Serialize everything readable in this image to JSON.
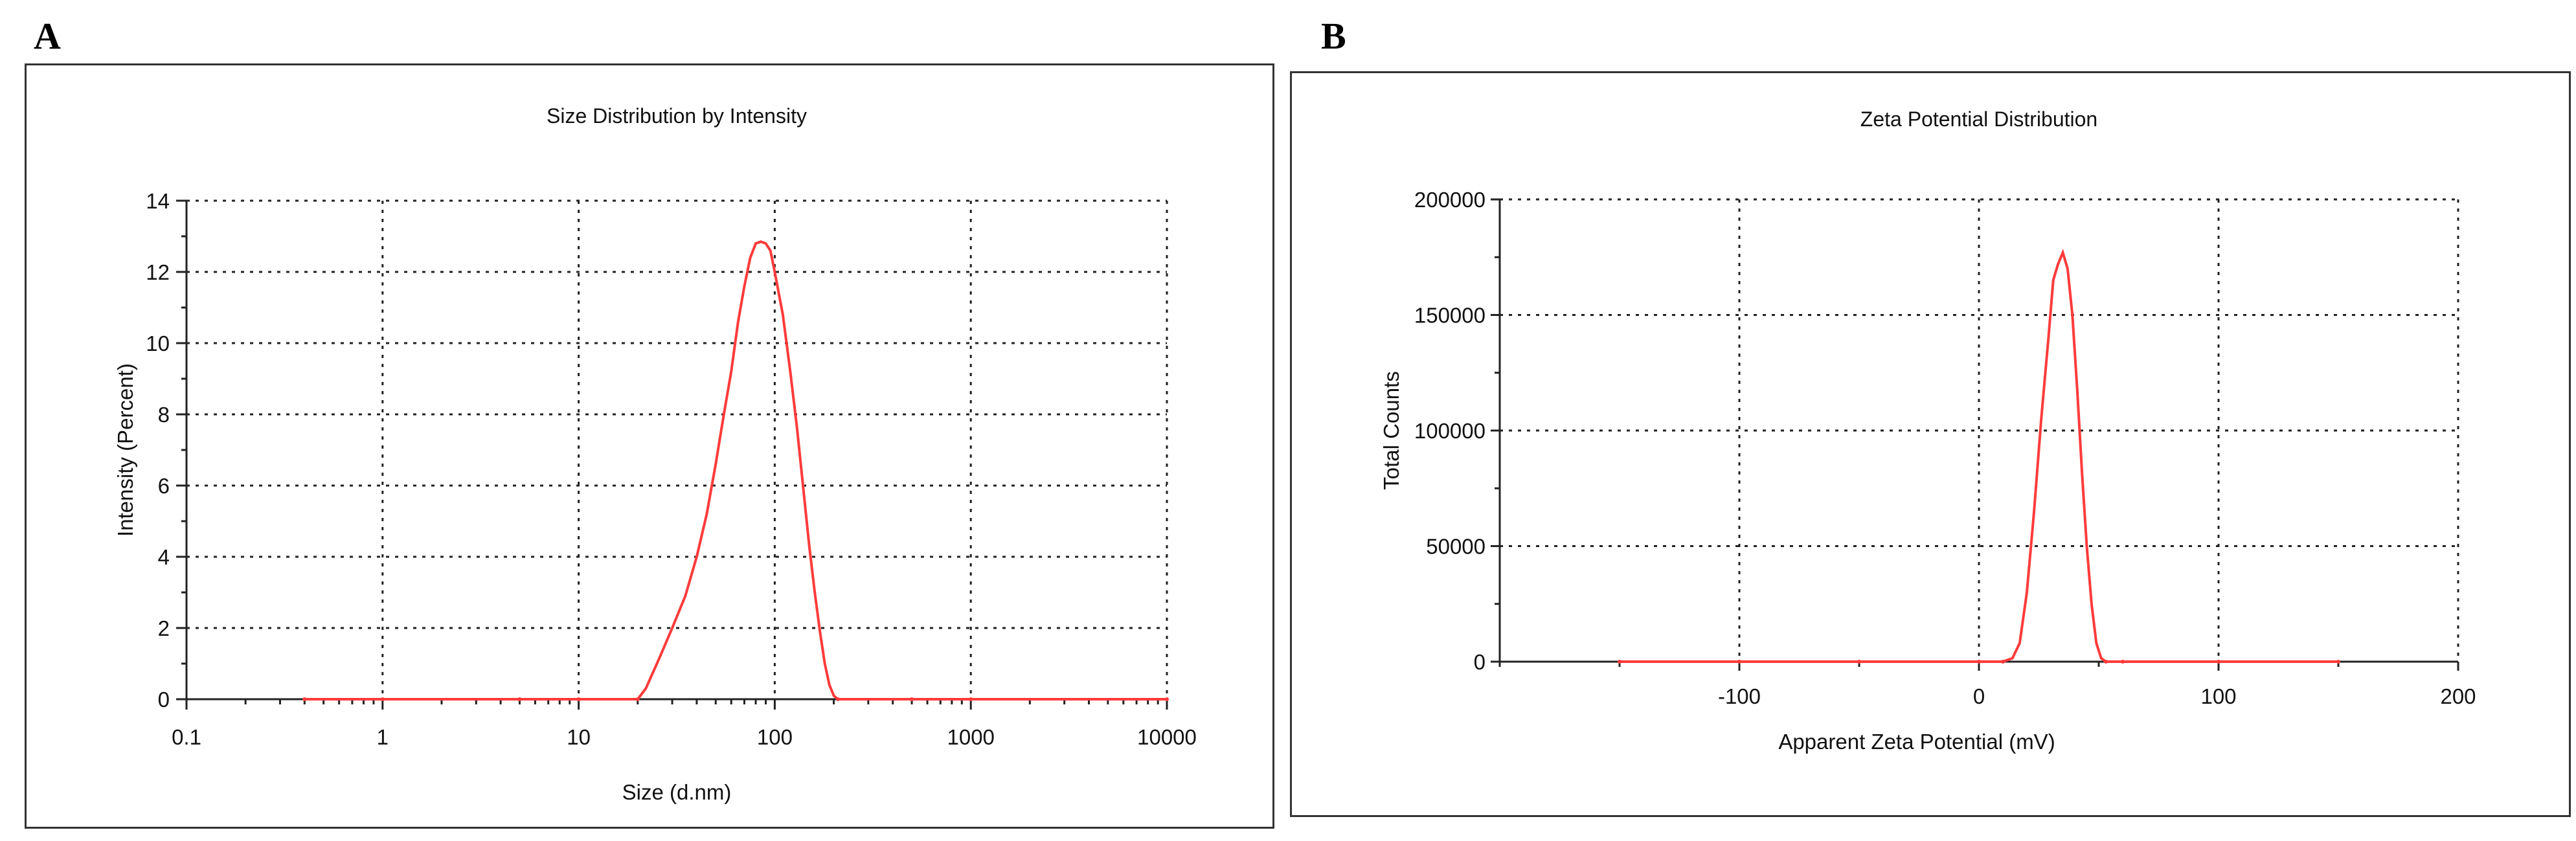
{
  "panels": {
    "a_label": "A",
    "b_label": "B"
  },
  "chart_data": [
    {
      "type": "line",
      "title": "Size Distribution by Intensity",
      "xlabel": "Size (d.nm)",
      "ylabel": "Intensity (Percent)",
      "x_scale": "log",
      "xlim": [
        0.1,
        10000
      ],
      "ylim": [
        0,
        14
      ],
      "x_ticks": [
        "0.1",
        "1",
        "10",
        "100",
        "1000",
        "10000"
      ],
      "y_ticks": [
        "0",
        "2",
        "4",
        "6",
        "8",
        "10",
        "12",
        "14"
      ],
      "grid": true,
      "color": "#ff3b3b",
      "series": [
        {
          "x": [
            0.4,
            1,
            5,
            10,
            20,
            22,
            26,
            30,
            35,
            40,
            45,
            50,
            55,
            60,
            65,
            70,
            75,
            80,
            85,
            90,
            95,
            100,
            110,
            120,
            130,
            140,
            150,
            160,
            170,
            180,
            190,
            200,
            210,
            500,
            1000,
            10000
          ],
          "y": [
            0,
            0,
            0,
            0,
            0,
            0.3,
            1.2,
            2.0,
            2.9,
            4.0,
            5.2,
            6.6,
            8.0,
            9.2,
            10.6,
            11.6,
            12.4,
            12.8,
            12.85,
            12.8,
            12.6,
            12.0,
            10.8,
            9.2,
            7.6,
            5.9,
            4.3,
            3.0,
            1.9,
            1.0,
            0.4,
            0.1,
            0,
            0,
            0,
            0
          ]
        }
      ]
    },
    {
      "type": "line",
      "title": "Zeta Potential Distribution",
      "xlabel": "Apparent Zeta Potential (mV)",
      "ylabel": "Total Counts",
      "xlim": [
        -200,
        200
      ],
      "ylim": [
        0,
        200000
      ],
      "x_ticks": [
        "-100",
        "0",
        "100",
        "200"
      ],
      "y_ticks": [
        "0",
        "50000",
        "100000",
        "150000",
        "200000"
      ],
      "grid": true,
      "color": "#ff3b3b",
      "series": [
        {
          "x": [
            -150,
            -100,
            -50,
            0,
            10,
            14,
            17,
            20,
            23,
            26,
            29,
            31,
            33,
            35,
            37,
            39,
            41,
            43,
            45,
            47,
            49,
            51,
            53,
            60,
            100,
            150
          ],
          "y": [
            0,
            0,
            0,
            0,
            0,
            1500,
            8000,
            30000,
            65000,
            105000,
            140000,
            165000,
            172000,
            177000,
            170000,
            150000,
            118000,
            82000,
            50000,
            25000,
            8000,
            1500,
            0,
            0,
            0,
            0
          ]
        }
      ]
    }
  ]
}
